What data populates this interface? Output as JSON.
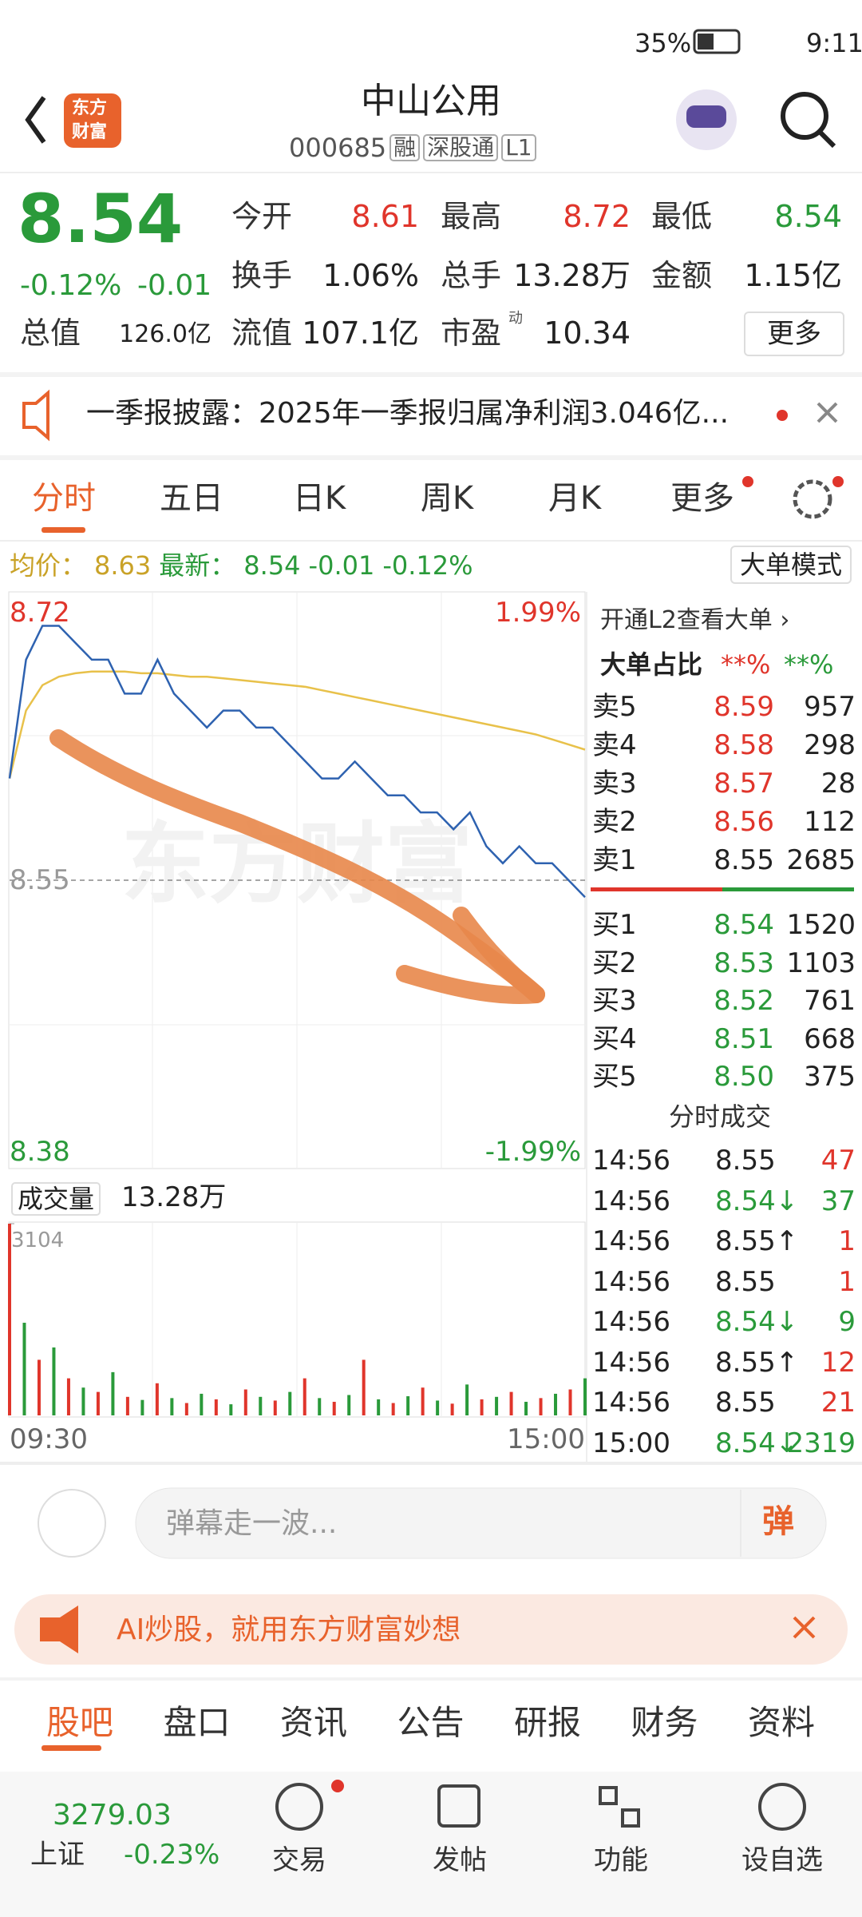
{
  "status_bar": {
    "battery": "35%",
    "time": "9:11"
  },
  "header": {
    "logo": [
      "东方",
      "财富"
    ],
    "title": "中山公用",
    "code": "000685",
    "tags": [
      "融",
      "深股通",
      "L1"
    ]
  },
  "quote": {
    "price": "8.54",
    "change_pct": "-0.12%",
    "change": "-0.01",
    "fields": [
      {
        "label": "今开",
        "value": "8.61"
      },
      {
        "label": "最高",
        "value": "8.72"
      },
      {
        "label": "最低",
        "value": "8.54"
      },
      {
        "label": "换手",
        "value": "1.06%"
      },
      {
        "label": "总手",
        "value": "13.28万"
      },
      {
        "label": "金额",
        "value": "1.15亿"
      },
      {
        "label": "总值",
        "value": "126.0亿"
      },
      {
        "label": "流值",
        "value": "107.1亿"
      },
      {
        "label": "市盈",
        "value": "10.34"
      }
    ],
    "pe_mark": "动",
    "more": "更多"
  },
  "notice": "一季报披露：2025年一季报归属净利润3.046亿...",
  "tabs": [
    "分时",
    "五日",
    "日K",
    "周K",
    "月K",
    "更多"
  ],
  "info_line": {
    "avg_label": "均价：",
    "avg": "8.63",
    "latest_label": "最新：",
    "latest": "8.54",
    "change": "-0.01",
    "change_pct": "-0.12%",
    "mode": "大单模式"
  },
  "intraday": {
    "ylim": [
      8.38,
      8.72
    ],
    "prev_close": 8.55,
    "up_pct": "1.99%",
    "down_pct": "-1.99%",
    "watermark": "东方财富",
    "price": [
      8.61,
      8.68,
      8.7,
      8.7,
      8.69,
      8.68,
      8.68,
      8.66,
      8.66,
      8.68,
      8.66,
      8.65,
      8.64,
      8.65,
      8.65,
      8.64,
      8.64,
      8.63,
      8.62,
      8.61,
      8.61,
      8.62,
      8.61,
      8.6,
      8.6,
      8.59,
      8.59,
      8.58,
      8.59,
      8.57,
      8.56,
      8.57,
      8.56,
      8.56,
      8.55,
      8.54
    ],
    "avg": [
      8.61,
      8.65,
      8.665,
      8.67,
      8.672,
      8.673,
      8.673,
      8.673,
      8.672,
      8.672,
      8.671,
      8.67,
      8.67,
      8.669,
      8.668,
      8.667,
      8.666,
      8.665,
      8.664,
      8.662,
      8.66,
      8.658,
      8.656,
      8.654,
      8.652,
      8.65,
      8.648,
      8.646,
      8.644,
      8.642,
      8.64,
      8.638,
      8.636,
      8.633,
      8.63,
      8.627
    ],
    "volume_label": "成交量",
    "volume_total": "13.28万",
    "volume_max": 3104,
    "volume": [
      3104,
      1500,
      900,
      1100,
      600,
      450,
      380,
      700,
      300,
      250,
      520,
      280,
      200,
      350,
      260,
      180,
      420,
      300,
      240,
      380,
      600,
      280,
      220,
      330,
      900,
      260,
      200,
      310,
      450,
      240,
      190,
      500,
      260,
      300,
      380,
      220,
      280,
      350,
      420,
      600
    ],
    "time_start": "09:30",
    "time_end": "15:00"
  },
  "order_book": {
    "promo": "开通L2查看大单 ›",
    "ratio_label": "大单占比",
    "ratio_buy": "**%",
    "ratio_sell": "**%",
    "asks": [
      {
        "label": "卖5",
        "price": "8.59",
        "volume": "957"
      },
      {
        "label": "卖4",
        "price": "8.58",
        "volume": "298"
      },
      {
        "label": "卖3",
        "price": "8.57",
        "volume": "28"
      },
      {
        "label": "卖2",
        "price": "8.56",
        "volume": "112"
      },
      {
        "label": "卖1",
        "price": "8.55",
        "volume": "2685"
      }
    ],
    "bids": [
      {
        "label": "买1",
        "price": "8.54",
        "volume": "1520"
      },
      {
        "label": "买2",
        "price": "8.53",
        "volume": "1103"
      },
      {
        "label": "买3",
        "price": "8.52",
        "volume": "761"
      },
      {
        "label": "买4",
        "price": "8.51",
        "volume": "668"
      },
      {
        "label": "买5",
        "price": "8.50",
        "volume": "375"
      }
    ]
  },
  "trades": {
    "title": "分时成交",
    "rows": [
      {
        "time": "14:56",
        "price": "8.55",
        "volume": "47"
      },
      {
        "time": "14:56",
        "price": "8.54↓",
        "volume": "37"
      },
      {
        "time": "14:56",
        "price": "8.55↑",
        "volume": "1"
      },
      {
        "time": "14:56",
        "price": "8.55",
        "volume": "1"
      },
      {
        "time": "14:56",
        "price": "8.54↓",
        "volume": "9"
      },
      {
        "time": "14:56",
        "price": "8.55↑",
        "volume": "12"
      },
      {
        "time": "14:56",
        "price": "8.55",
        "volume": "21"
      },
      {
        "time": "15:00",
        "price": "8.54↓",
        "volume": "2319"
      }
    ]
  },
  "danmaku": {
    "placeholder": "弹幕走一波...",
    "button": "弹"
  },
  "ai_banner": "AI炒股，就用东方财富妙想",
  "bottom_tabs": [
    "股吧",
    "盘口",
    "资讯",
    "公告",
    "研报",
    "财务",
    "资料"
  ],
  "nav": {
    "index_value": "3279.03",
    "index_name": "上证",
    "index_change": "-0.23%",
    "items": [
      "交易",
      "发帖",
      "功能",
      "设自选"
    ]
  }
}
